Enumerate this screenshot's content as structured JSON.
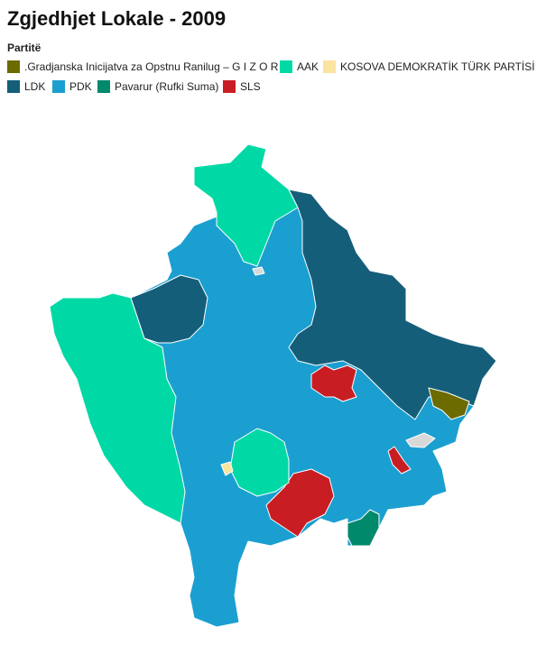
{
  "header": {
    "title": "Zgjedhjet Lokale - 2009"
  },
  "legend": {
    "title": "Partitë",
    "items": [
      {
        "label": ".Gradjanska Inicijatva za Opstnu Ranilug – G I Z O R",
        "color": "#6b6b00"
      },
      {
        "label": "AAK",
        "color": "#00d9a5"
      },
      {
        "label": "KOSOVA DEMOKRATİK TÜRK PARTİSİ",
        "color": "#fbe3a0"
      },
      {
        "label": "LDK",
        "color": "#155e7a"
      },
      {
        "label": "PDK",
        "color": "#1b9fd0"
      },
      {
        "label": "Pavarur (Rufki Suma)",
        "color": "#00896b"
      },
      {
        "label": "SLS",
        "color": "#c81e23"
      }
    ]
  }
}
